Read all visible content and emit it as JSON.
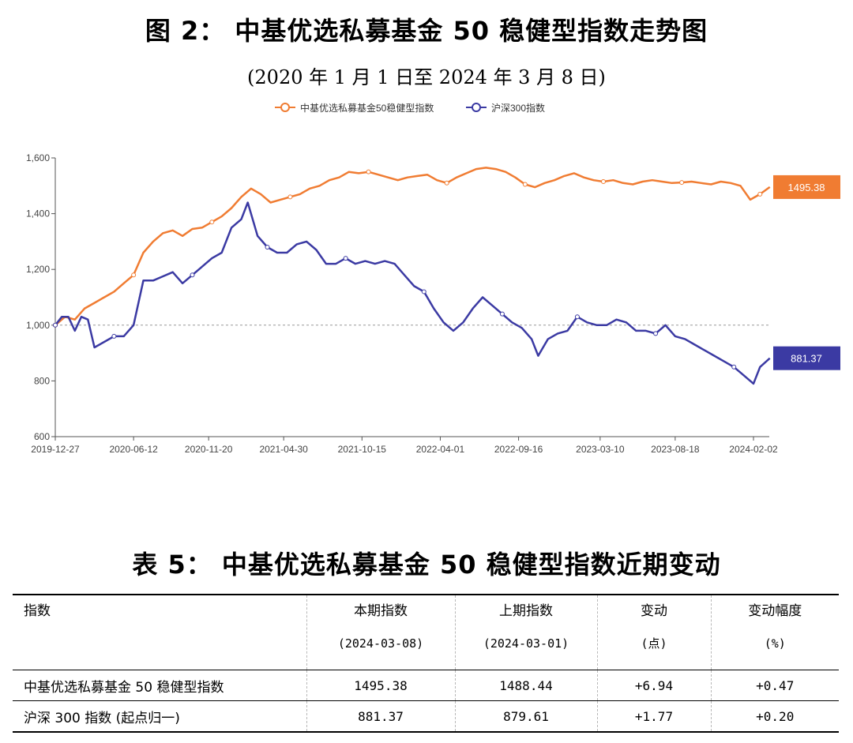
{
  "figure": {
    "title": "图 2：  中基优选私募基金 50 稳健型指数走势图",
    "subtitle": "(2020 年 1 月 1 日至 2024 年 3 月 8 日)"
  },
  "chart_data": {
    "type": "line",
    "x_ticks": [
      "2019-12-27",
      "2020-06-12",
      "2020-11-20",
      "2021-04-30",
      "2021-10-15",
      "2022-04-01",
      "2022-09-16",
      "2023-03-10",
      "2023-08-18",
      "2024-02-02"
    ],
    "ylim": [
      600,
      1600
    ],
    "y_ticks": [
      "600",
      "800",
      "1,000",
      "1,200",
      "1,400",
      "1,600"
    ],
    "reference_line": 1000,
    "grid": false,
    "legend_position": "top",
    "series": [
      {
        "name": "中基优选私募基金50稳健型指数",
        "color": "#f07c32",
        "end_label": "1495.38",
        "points": [
          [
            "2019-12-27",
            1000
          ],
          [
            "2020-01-17",
            1030
          ],
          [
            "2020-02-07",
            1020
          ],
          [
            "2020-02-28",
            1060
          ],
          [
            "2020-03-20",
            1080
          ],
          [
            "2020-04-10",
            1100
          ],
          [
            "2020-05-01",
            1120
          ],
          [
            "2020-05-22",
            1150
          ],
          [
            "2020-06-12",
            1180
          ],
          [
            "2020-07-03",
            1260
          ],
          [
            "2020-07-24",
            1300
          ],
          [
            "2020-08-14",
            1330
          ],
          [
            "2020-09-04",
            1340
          ],
          [
            "2020-09-25",
            1320
          ],
          [
            "2020-10-16",
            1345
          ],
          [
            "2020-11-06",
            1350
          ],
          [
            "2020-11-27",
            1370
          ],
          [
            "2020-12-18",
            1390
          ],
          [
            "2021-01-08",
            1420
          ],
          [
            "2021-01-29",
            1460
          ],
          [
            "2021-02-19",
            1490
          ],
          [
            "2021-03-12",
            1470
          ],
          [
            "2021-04-02",
            1440
          ],
          [
            "2021-04-23",
            1450
          ],
          [
            "2021-05-14",
            1460
          ],
          [
            "2021-06-04",
            1470
          ],
          [
            "2021-06-25",
            1490
          ],
          [
            "2021-07-16",
            1500
          ],
          [
            "2021-08-06",
            1520
          ],
          [
            "2021-08-27",
            1530
          ],
          [
            "2021-09-17",
            1550
          ],
          [
            "2021-10-08",
            1545
          ],
          [
            "2021-10-29",
            1550
          ],
          [
            "2021-11-19",
            1540
          ],
          [
            "2021-12-10",
            1530
          ],
          [
            "2021-12-31",
            1520
          ],
          [
            "2022-01-21",
            1530
          ],
          [
            "2022-02-11",
            1535
          ],
          [
            "2022-03-04",
            1540
          ],
          [
            "2022-03-25",
            1520
          ],
          [
            "2022-04-15",
            1510
          ],
          [
            "2022-05-06",
            1530
          ],
          [
            "2022-05-27",
            1545
          ],
          [
            "2022-06-17",
            1560
          ],
          [
            "2022-07-08",
            1565
          ],
          [
            "2022-07-29",
            1560
          ],
          [
            "2022-08-19",
            1550
          ],
          [
            "2022-09-09",
            1530
          ],
          [
            "2022-09-30",
            1505
          ],
          [
            "2022-10-21",
            1495
          ],
          [
            "2022-11-11",
            1510
          ],
          [
            "2022-12-02",
            1520
          ],
          [
            "2022-12-23",
            1535
          ],
          [
            "2023-01-13",
            1545
          ],
          [
            "2023-02-03",
            1530
          ],
          [
            "2023-02-24",
            1520
          ],
          [
            "2023-03-17",
            1515
          ],
          [
            "2023-04-07",
            1520
          ],
          [
            "2023-04-28",
            1510
          ],
          [
            "2023-05-19",
            1505
          ],
          [
            "2023-06-09",
            1515
          ],
          [
            "2023-06-30",
            1520
          ],
          [
            "2023-07-21",
            1515
          ],
          [
            "2023-08-11",
            1510
          ],
          [
            "2023-09-01",
            1512
          ],
          [
            "2023-09-22",
            1515
          ],
          [
            "2023-10-13",
            1510
          ],
          [
            "2023-11-03",
            1505
          ],
          [
            "2023-11-24",
            1515
          ],
          [
            "2023-12-15",
            1510
          ],
          [
            "2024-01-05",
            1500
          ],
          [
            "2024-01-26",
            1450
          ],
          [
            "2024-02-16",
            1470
          ],
          [
            "2024-03-08",
            1495.38
          ]
        ]
      },
      {
        "name": "沪深300指数",
        "color": "#3b3aa3",
        "end_label": "881.37",
        "points": [
          [
            "2019-12-27",
            1000
          ],
          [
            "2020-01-10",
            1030
          ],
          [
            "2020-01-24",
            1030
          ],
          [
            "2020-02-07",
            980
          ],
          [
            "2020-02-21",
            1030
          ],
          [
            "2020-03-06",
            1020
          ],
          [
            "2020-03-20",
            920
          ],
          [
            "2020-04-10",
            940
          ],
          [
            "2020-05-01",
            960
          ],
          [
            "2020-05-22",
            960
          ],
          [
            "2020-06-12",
            1000
          ],
          [
            "2020-07-03",
            1160
          ],
          [
            "2020-07-24",
            1160
          ],
          [
            "2020-08-14",
            1175
          ],
          [
            "2020-09-04",
            1190
          ],
          [
            "2020-09-25",
            1150
          ],
          [
            "2020-10-16",
            1180
          ],
          [
            "2020-11-06",
            1210
          ],
          [
            "2020-11-27",
            1240
          ],
          [
            "2020-12-18",
            1260
          ],
          [
            "2021-01-08",
            1350
          ],
          [
            "2021-01-29",
            1380
          ],
          [
            "2021-02-12",
            1440
          ],
          [
            "2021-03-05",
            1320
          ],
          [
            "2021-03-26",
            1280
          ],
          [
            "2021-04-16",
            1260
          ],
          [
            "2021-05-07",
            1260
          ],
          [
            "2021-05-28",
            1290
          ],
          [
            "2021-06-18",
            1300
          ],
          [
            "2021-07-09",
            1270
          ],
          [
            "2021-07-30",
            1220
          ],
          [
            "2021-08-20",
            1220
          ],
          [
            "2021-09-10",
            1240
          ],
          [
            "2021-10-01",
            1220
          ],
          [
            "2021-10-22",
            1230
          ],
          [
            "2021-11-12",
            1220
          ],
          [
            "2021-12-03",
            1230
          ],
          [
            "2021-12-24",
            1220
          ],
          [
            "2022-01-14",
            1180
          ],
          [
            "2022-02-04",
            1140
          ],
          [
            "2022-02-25",
            1120
          ],
          [
            "2022-03-18",
            1060
          ],
          [
            "2022-04-08",
            1010
          ],
          [
            "2022-04-29",
            980
          ],
          [
            "2022-05-20",
            1010
          ],
          [
            "2022-06-10",
            1060
          ],
          [
            "2022-07-01",
            1100
          ],
          [
            "2022-07-22",
            1070
          ],
          [
            "2022-08-12",
            1040
          ],
          [
            "2022-09-02",
            1010
          ],
          [
            "2022-09-23",
            990
          ],
          [
            "2022-10-14",
            950
          ],
          [
            "2022-10-28",
            890
          ],
          [
            "2022-11-18",
            950
          ],
          [
            "2022-12-09",
            970
          ],
          [
            "2022-12-30",
            980
          ],
          [
            "2023-01-20",
            1030
          ],
          [
            "2023-02-10",
            1010
          ],
          [
            "2023-03-03",
            1000
          ],
          [
            "2023-03-24",
            1000
          ],
          [
            "2023-04-14",
            1020
          ],
          [
            "2023-05-05",
            1010
          ],
          [
            "2023-05-26",
            980
          ],
          [
            "2023-06-16",
            980
          ],
          [
            "2023-07-07",
            970
          ],
          [
            "2023-07-28",
            1000
          ],
          [
            "2023-08-18",
            960
          ],
          [
            "2023-09-08",
            950
          ],
          [
            "2023-09-29",
            930
          ],
          [
            "2023-10-20",
            910
          ],
          [
            "2023-11-10",
            890
          ],
          [
            "2023-12-01",
            870
          ],
          [
            "2023-12-22",
            850
          ],
          [
            "2024-01-12",
            820
          ],
          [
            "2024-02-02",
            790
          ],
          [
            "2024-02-16",
            850
          ],
          [
            "2024-03-08",
            881.37
          ]
        ]
      }
    ]
  },
  "table": {
    "title": "表 5：  中基优选私募基金 50 稳健型指数近期变动",
    "headers": [
      {
        "line1": "指数",
        "line2": ""
      },
      {
        "line1": "本期指数",
        "line2": "(2024-03-08)"
      },
      {
        "line1": "上期指数",
        "line2": "(2024-03-01)"
      },
      {
        "line1": "变动",
        "line2": "(点)"
      },
      {
        "line1": "变动幅度",
        "line2": "(%)"
      }
    ],
    "rows": [
      {
        "name": "中基优选私募基金 50 稳健型指数",
        "current": "1495.38",
        "previous": "1488.44",
        "change": "+6.94",
        "pct": "+0.47"
      },
      {
        "name": "沪深 300 指数 (起点归一)",
        "current": "881.37",
        "previous": "879.61",
        "change": "+1.77",
        "pct": "+0.20"
      }
    ]
  }
}
